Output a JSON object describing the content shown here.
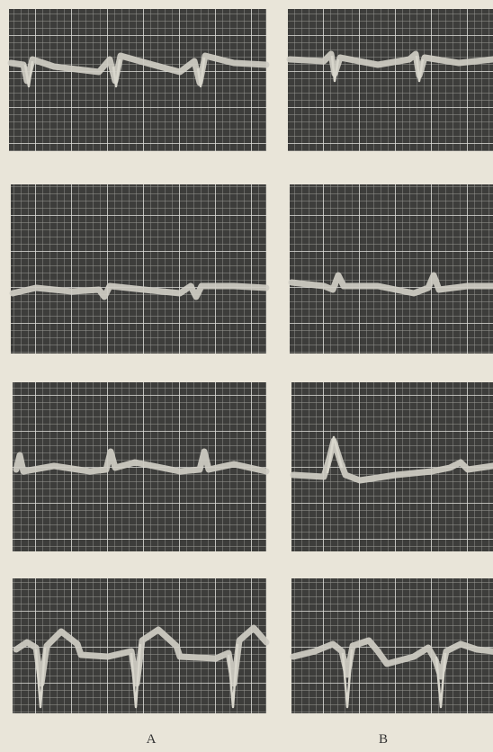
{
  "columns": [
    "A",
    "B"
  ]
}
